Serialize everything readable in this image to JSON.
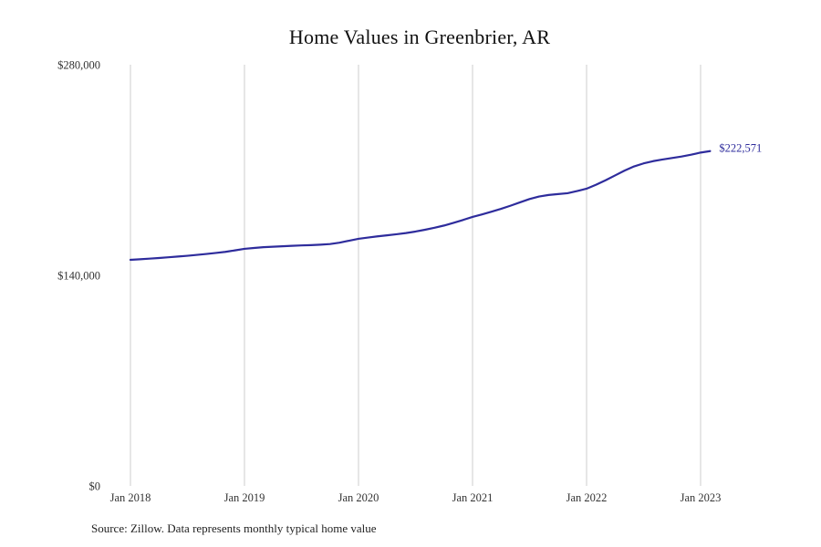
{
  "chart": {
    "title": "Home Values in Greenbrier, AR",
    "source": "Source: Zillow. Data represents monthly typical home value",
    "end_label": "$222,571"
  },
  "colors": {
    "line": "#2e2c9c",
    "grid": "#cccccc",
    "tick_text": "#333333",
    "title_text": "#111111",
    "source_text": "#222222"
  },
  "chart_data": {
    "type": "line",
    "title": "Home Values in Greenbrier, AR",
    "xlabel": "",
    "ylabel": "",
    "ylim": [
      0,
      280000
    ],
    "grid": "vertical-only",
    "legend": "none",
    "y_ticks": [
      {
        "label": "$0",
        "value": 0
      },
      {
        "label": "$140,000",
        "value": 140000
      },
      {
        "label": "$280,000",
        "value": 280000
      }
    ],
    "x_ticks": [
      {
        "label": "Jan 2018",
        "month": "2018-01"
      },
      {
        "label": "Jan 2019",
        "month": "2019-01"
      },
      {
        "label": "Jan 2020",
        "month": "2020-01"
      },
      {
        "label": "Jan 2021",
        "month": "2021-01"
      },
      {
        "label": "Jan 2022",
        "month": "2022-01"
      },
      {
        "label": "Jan 2023",
        "month": "2023-01"
      }
    ],
    "end_annotation": {
      "label": "$222,571",
      "value": 222571,
      "month": "2023-02"
    },
    "x": [
      "2018-01",
      "2018-02",
      "2018-03",
      "2018-04",
      "2018-05",
      "2018-06",
      "2018-07",
      "2018-08",
      "2018-09",
      "2018-10",
      "2018-11",
      "2018-12",
      "2019-01",
      "2019-02",
      "2019-03",
      "2019-04",
      "2019-05",
      "2019-06",
      "2019-07",
      "2019-08",
      "2019-09",
      "2019-10",
      "2019-11",
      "2019-12",
      "2020-01",
      "2020-02",
      "2020-03",
      "2020-04",
      "2020-05",
      "2020-06",
      "2020-07",
      "2020-08",
      "2020-09",
      "2020-10",
      "2020-11",
      "2020-12",
      "2021-01",
      "2021-02",
      "2021-03",
      "2021-04",
      "2021-05",
      "2021-06",
      "2021-07",
      "2021-08",
      "2021-09",
      "2021-10",
      "2021-11",
      "2021-12",
      "2022-01",
      "2022-02",
      "2022-03",
      "2022-04",
      "2022-05",
      "2022-06",
      "2022-07",
      "2022-08",
      "2022-09",
      "2022-10",
      "2022-11",
      "2022-12",
      "2023-01",
      "2023-02"
    ],
    "values": [
      150300,
      150700,
      151100,
      151500,
      152000,
      152500,
      153000,
      153600,
      154200,
      154900,
      155600,
      156600,
      157600,
      158200,
      158700,
      159000,
      159300,
      159600,
      159900,
      160100,
      160400,
      160800,
      161700,
      163000,
      164300,
      165100,
      165900,
      166600,
      167300,
      168100,
      169100,
      170300,
      171600,
      173100,
      174900,
      176800,
      178800,
      180500,
      182300,
      184200,
      186300,
      188500,
      190700,
      192400,
      193400,
      194000,
      194600,
      196000,
      197600,
      200200,
      203200,
      206400,
      209600,
      212400,
      214400,
      215900,
      217000,
      218000,
      219000,
      220200,
      221600,
      222571
    ]
  }
}
